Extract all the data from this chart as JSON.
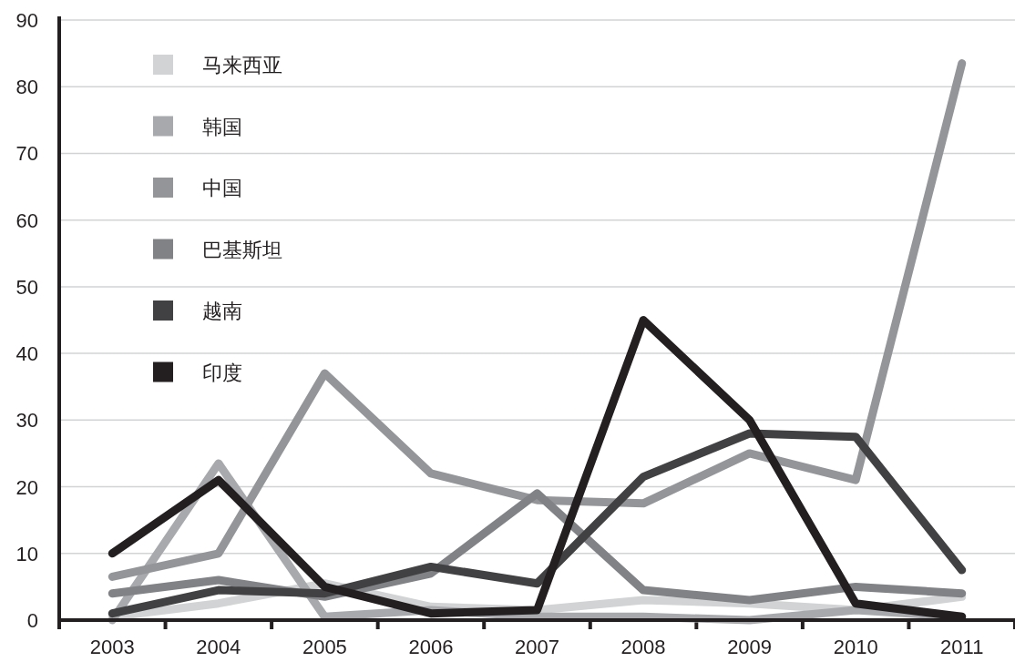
{
  "chart_data": {
    "type": "line",
    "categories": [
      "2003",
      "2004",
      "2005",
      "2006",
      "2007",
      "2008",
      "2009",
      "2010",
      "2011"
    ],
    "series": [
      {
        "name": "马来西亚",
        "color": "#d1d3d4",
        "values": [
          0.5,
          2.5,
          5.5,
          2,
          1.5,
          3,
          2.5,
          1.5,
          3.5
        ]
      },
      {
        "name": "韩国",
        "color": "#a7a9ac",
        "values": [
          0,
          23.5,
          0.5,
          1.5,
          0.5,
          0.5,
          0,
          1.5,
          0.5
        ]
      },
      {
        "name": "中国",
        "color": "#939598",
        "values": [
          6.5,
          10,
          37,
          22,
          18,
          17.5,
          25,
          21,
          83.5
        ]
      },
      {
        "name": "巴基斯坦",
        "color": "#808285",
        "values": [
          4,
          6,
          3.5,
          7,
          19,
          4.5,
          3,
          5,
          4
        ]
      },
      {
        "name": "越南",
        "color": "#414042",
        "values": [
          1,
          4.5,
          4,
          8,
          5.5,
          21.5,
          28,
          27.5,
          7.5
        ]
      },
      {
        "name": "印度",
        "color": "#231f20",
        "values": [
          10,
          21,
          5,
          1,
          1.5,
          45,
          30,
          2.5,
          0.5
        ]
      }
    ],
    "ylim": [
      0,
      90
    ],
    "yticks": [
      0,
      10,
      20,
      30,
      40,
      50,
      60,
      70,
      80,
      90
    ],
    "grid": "y",
    "legend": "top left",
    "marker": "none",
    "line_style": "solid"
  }
}
